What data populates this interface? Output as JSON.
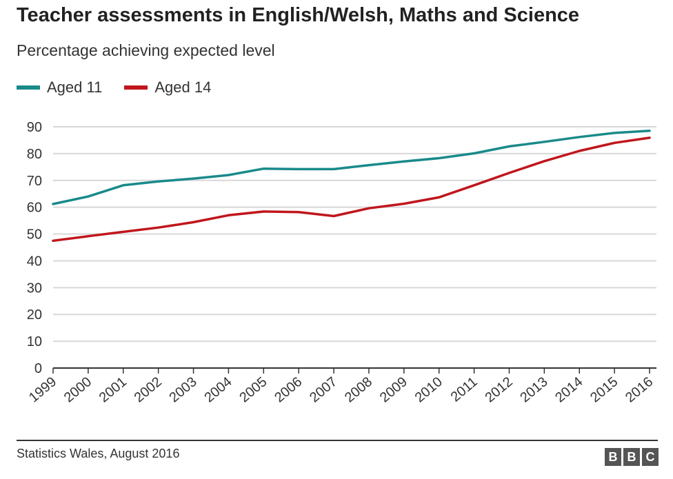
{
  "header": {
    "title": "Teacher assessments in English/Welsh, Maths and Science",
    "subtitle": "Percentage achieving expected level"
  },
  "footer": {
    "source": "Statistics Wales, August 2016",
    "logo_letters": [
      "B",
      "B",
      "C"
    ]
  },
  "colors": {
    "aged_11": "#1a8a8a",
    "aged_14": "#c0161c",
    "grid": "#d8d8d8",
    "axis": "#333333"
  },
  "chart_data": {
    "type": "line",
    "title": "Teacher assessments in English/Welsh, Maths and Science",
    "subtitle": "Percentage achieving expected level",
    "xlabel": "",
    "ylabel": "",
    "ylim": [
      0,
      90
    ],
    "yticks": [
      0,
      10,
      20,
      30,
      40,
      50,
      60,
      70,
      80,
      90
    ],
    "grid": true,
    "legend": "top-left",
    "x": [
      "1999",
      "2000",
      "2001",
      "2002",
      "2003",
      "2004",
      "2005",
      "2006",
      "2007",
      "2008",
      "2009",
      "2010",
      "2011",
      "2012",
      "2013",
      "2014",
      "2015",
      "2016"
    ],
    "series": [
      {
        "name": "Aged 11",
        "color": "#1a8a8a",
        "values": [
          61.2,
          64,
          68.2,
          69.6,
          70.7,
          72,
          74.4,
          74.2,
          74.2,
          75.7,
          77.1,
          78.3,
          80.1,
          82.7,
          84.4,
          86.2,
          87.7,
          88.5
        ]
      },
      {
        "name": "Aged 14",
        "color": "#c0161c",
        "values": [
          47.5,
          49.2,
          50.8,
          52.4,
          54.4,
          57,
          58.4,
          58.2,
          56.7,
          59.6,
          61.3,
          63.7,
          68.2,
          72.8,
          77.2,
          81,
          84,
          85.9
        ]
      }
    ]
  }
}
